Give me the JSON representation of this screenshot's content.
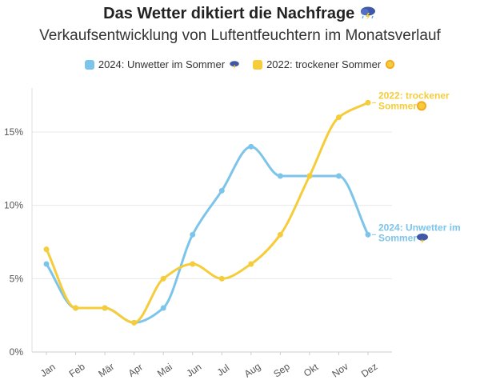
{
  "title": "Das Wetter diktiert die Nachfrage",
  "title_icon": "storm-cloud-icon",
  "subtitle": "Verkaufsentwicklung von Luftentfeuchtern im Monatsverlauf",
  "colors": {
    "series_2024": "#7cc4ea",
    "series_2022": "#f5cc3a",
    "grid": "#e8e8e8",
    "axis_text": "#555555"
  },
  "legend": [
    {
      "label": "2024: Unwetter im Sommer",
      "icon": "storm-cloud-icon",
      "color": "#7cc4ea"
    },
    {
      "label": "2022: trockener Sommer",
      "icon": "sun-icon",
      "color": "#f5cc3a"
    }
  ],
  "chart_data": {
    "type": "line",
    "categories": [
      "Jan",
      "Feb",
      "Mär",
      "Apr",
      "Mai",
      "Jun",
      "Jul",
      "Aug",
      "Sep",
      "Okt",
      "Nov",
      "Dez"
    ],
    "series": [
      {
        "name": "2024: Unwetter im Sommer",
        "values": [
          6,
          3,
          3,
          2,
          3,
          8,
          11,
          14,
          12,
          12,
          12,
          8
        ],
        "color": "#7cc4ea",
        "end_label_line1": "2024: Unwetter im",
        "end_label_line2": "Sommer",
        "icon": "storm-cloud-icon"
      },
      {
        "name": "2022: trockener Sommer",
        "values": [
          7,
          3,
          3,
          2,
          5,
          6,
          5,
          6,
          8,
          12,
          16,
          17
        ],
        "color": "#f5cc3a",
        "end_label_line1": "2022: trockener",
        "end_label_line2": "Sommer",
        "icon": "sun-icon"
      }
    ],
    "ylim": [
      0,
      18
    ],
    "yticks": [
      0,
      5,
      10,
      15
    ],
    "ytick_labels": [
      "0%",
      "5%",
      "10%",
      "15%"
    ],
    "grid": true,
    "legend_position": "top-center"
  }
}
